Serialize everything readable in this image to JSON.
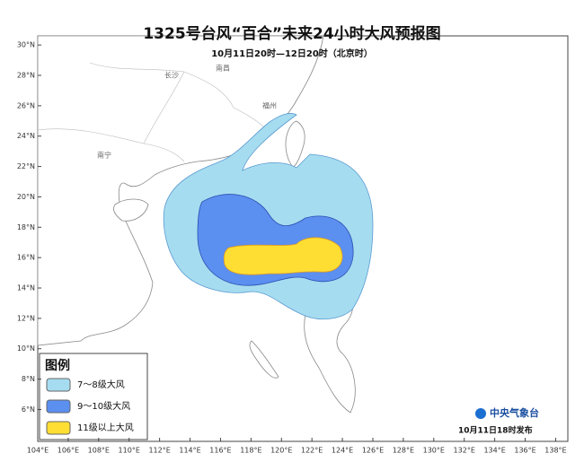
{
  "map": {
    "title": "1325号台风“百合”未来24小时大风预报图",
    "subtitle": "10月11日20时—12日20时（北京时）",
    "lonlim": [
      104,
      138.8
    ],
    "latlim": [
      3.9,
      30.6
    ],
    "lat_ticks": [
      {
        "value": 30,
        "label": "30°N"
      },
      {
        "value": 28,
        "label": "28°N"
      },
      {
        "value": 26,
        "label": "26°N"
      },
      {
        "value": 24,
        "label": "24°N"
      },
      {
        "value": 22,
        "label": "22°N"
      },
      {
        "value": 20,
        "label": "20°N"
      },
      {
        "value": 18,
        "label": "18°N"
      },
      {
        "value": 16,
        "label": "16°N"
      },
      {
        "value": 14,
        "label": "14°N"
      },
      {
        "value": 12,
        "label": "12°N"
      },
      {
        "value": 10,
        "label": "10°N"
      },
      {
        "value": 8,
        "label": "8°N"
      },
      {
        "value": 6,
        "label": "6°N"
      }
    ],
    "lon_ticks": [
      {
        "value": 104,
        "label": "104°E"
      },
      {
        "value": 106,
        "label": "106°E"
      },
      {
        "value": 108,
        "label": "108°E"
      },
      {
        "value": 110,
        "label": "110°E"
      },
      {
        "value": 112,
        "label": "112°E"
      },
      {
        "value": 114,
        "label": "114°E"
      },
      {
        "value": 116,
        "label": "116°E"
      },
      {
        "value": 118,
        "label": "118°E"
      },
      {
        "value": 120,
        "label": "120°E"
      },
      {
        "value": 122,
        "label": "122°E"
      },
      {
        "value": 124,
        "label": "124°E"
      },
      {
        "value": 126,
        "label": "126°E"
      },
      {
        "value": 128,
        "label": "128°E"
      },
      {
        "value": 130,
        "label": "130°E"
      },
      {
        "value": 132,
        "label": "132°E"
      },
      {
        "value": 134,
        "label": "134°E"
      },
      {
        "value": 136,
        "label": "136°E"
      },
      {
        "value": 138,
        "label": "138°E"
      }
    ],
    "places": [
      "长沙",
      "南昌",
      "福州",
      "南宁"
    ],
    "legend": {
      "title": "图例",
      "items": [
        {
          "label": "7～8级大风",
          "color": "#a6dcf0"
        },
        {
          "label": "9～10级大风",
          "color": "#5b8ff0"
        },
        {
          "label": "11级以上大风",
          "color": "#ffde33"
        }
      ]
    },
    "issuer": "中央气象台",
    "issued": "10月11日18时发布"
  }
}
